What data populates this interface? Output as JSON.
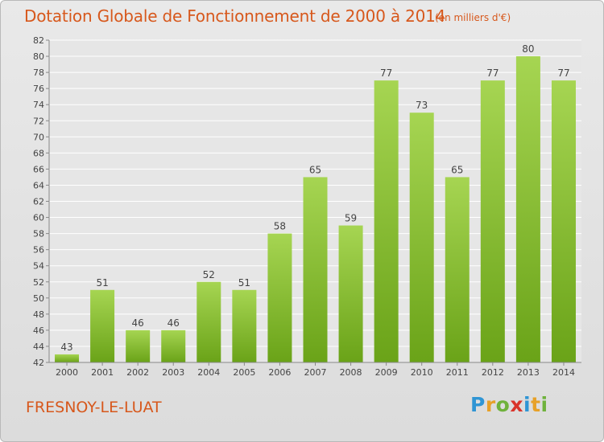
{
  "title": "Dotation Globale de Fonctionnement de 2000 à 2014",
  "subtitle": "(en milliers d'€)",
  "commune": "FRESNOY-LE-LUAT",
  "logo_text": "Proxiti",
  "colors": {
    "title": "#d7581c",
    "bar_light": "#a6d552",
    "bar_dark": "#6aa318",
    "background": "#e4e4e4"
  },
  "chart_data": {
    "type": "bar",
    "title": "Dotation Globale de Fonctionnement de 2000 à 2014",
    "subtitle": "(en milliers d'€)",
    "xlabel": "",
    "ylabel": "",
    "categories": [
      "2000",
      "2001",
      "2002",
      "2003",
      "2004",
      "2005",
      "2006",
      "2007",
      "2008",
      "2009",
      "2010",
      "2011",
      "2012",
      "2013",
      "2014"
    ],
    "values": [
      43,
      51,
      46,
      46,
      52,
      51,
      58,
      65,
      59,
      77,
      73,
      65,
      77,
      80,
      77
    ],
    "ylim": [
      42,
      82
    ],
    "yticks": [
      42,
      44,
      46,
      48,
      50,
      52,
      54,
      56,
      58,
      60,
      62,
      64,
      66,
      68,
      70,
      72,
      74,
      76,
      78,
      80,
      82
    ],
    "grid": true,
    "data_labels": true
  }
}
